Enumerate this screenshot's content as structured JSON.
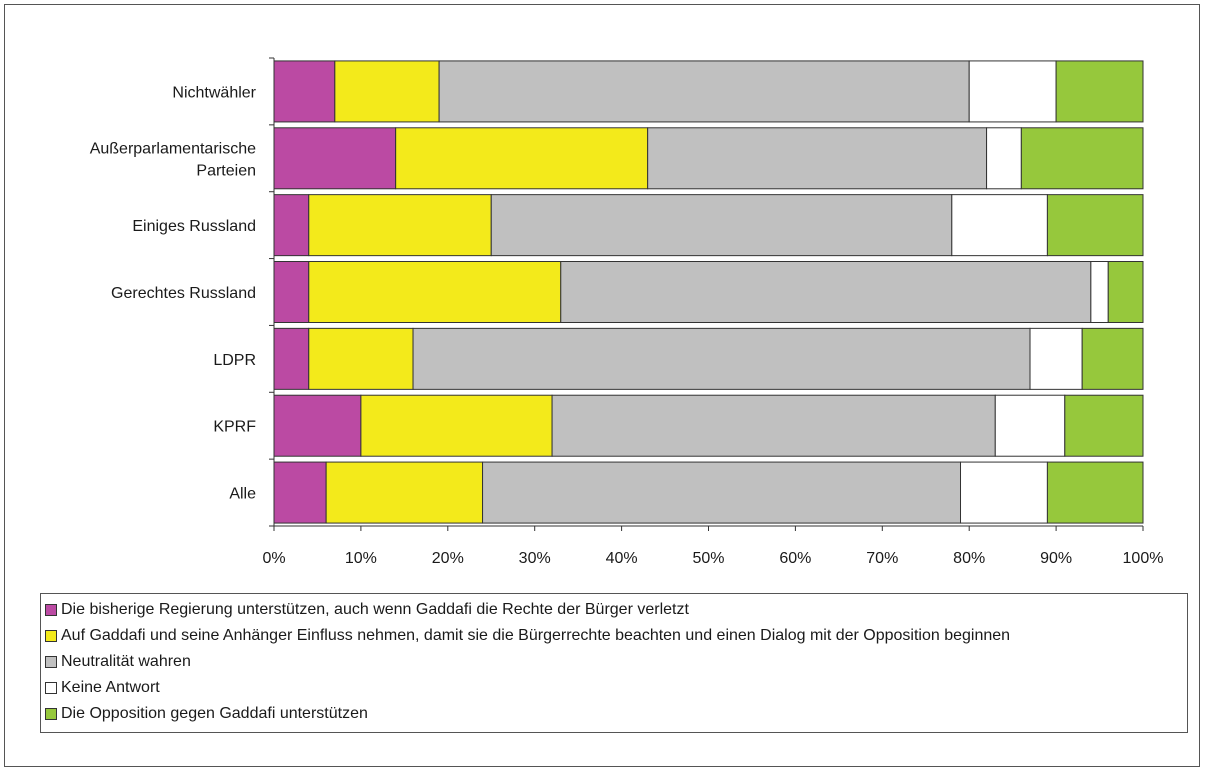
{
  "chart_data": {
    "type": "bar",
    "orientation": "horizontal",
    "stacked": true,
    "normalized": true,
    "categories": [
      "Nichtwähler",
      "Außerparlamentarische Parteien",
      "Einiges Russland",
      "Gerechtes Russland",
      "LDPR",
      "KPRF",
      "Alle"
    ],
    "category_lines": [
      [
        "Nichtwähler"
      ],
      [
        "Außerparlamentarische",
        "Parteien"
      ],
      [
        "Einiges Russland"
      ],
      [
        "Gerechtes Russland"
      ],
      [
        "LDPR"
      ],
      [
        "KPRF"
      ],
      [
        "Alle"
      ]
    ],
    "series": [
      {
        "name": "Die bisherige Regierung unterstützen, auch wenn Gaddafi die Rechte der Bürger verletzt",
        "color": "#bb4aa3",
        "values": [
          7,
          14,
          4,
          4,
          4,
          10,
          6
        ]
      },
      {
        "name": "Auf Gaddafi und seine Anhänger Einfluss nehmen, damit sie die Bürgerrechte beachten und einen Dialog mit der Opposition beginnen",
        "color": "#f3ea1b",
        "values": [
          12,
          29,
          21,
          29,
          12,
          22,
          18
        ]
      },
      {
        "name": "Neutralität wahren",
        "color": "#c0c0c0",
        "values": [
          61,
          39,
          53,
          61,
          71,
          51,
          55
        ]
      },
      {
        "name": "Keine Antwort",
        "color": "#ffffff",
        "values": [
          10,
          4,
          11,
          2,
          6,
          8,
          10
        ]
      },
      {
        "name": "Die Opposition gegen Gaddafi unterstützen",
        "color": "#96c83c",
        "values": [
          10,
          14,
          11,
          4,
          7,
          9,
          11
        ]
      }
    ],
    "x_ticks": [
      "0%",
      "10%",
      "20%",
      "30%",
      "40%",
      "50%",
      "60%",
      "70%",
      "80%",
      "90%",
      "100%"
    ],
    "xlim": [
      0,
      100
    ],
    "xlabel": "",
    "ylabel": "",
    "grid": false,
    "legend_position": "bottom"
  }
}
